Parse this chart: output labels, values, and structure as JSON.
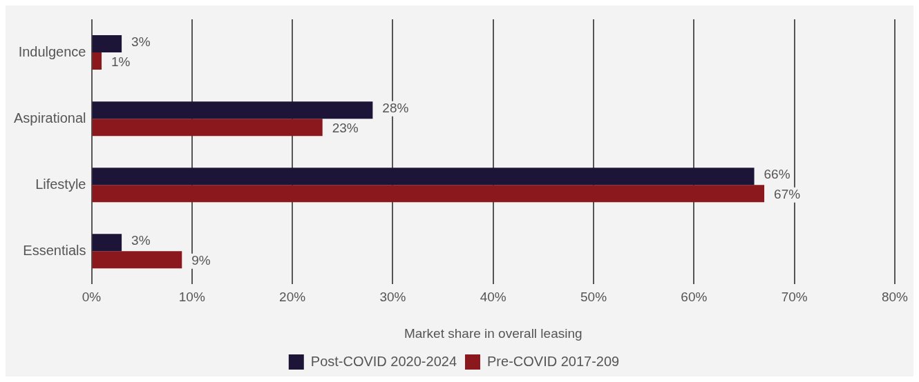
{
  "chart_data": {
    "type": "bar",
    "orientation": "horizontal",
    "xlabel": "Market share in overall leasing",
    "categories": [
      "Indulgence",
      "Aspirational",
      "Lifestyle",
      "Essentials"
    ],
    "series": [
      {
        "name": "Post-COVID 2020-2024",
        "color": "#1c1538",
        "values": [
          3,
          28,
          66,
          3
        ],
        "value_labels": [
          "3%",
          "28%",
          "66%",
          "3%"
        ]
      },
      {
        "name": "Pre-COVID 2017-209",
        "color": "#8b181c",
        "values": [
          1,
          23,
          67,
          9
        ],
        "value_labels": [
          "1%",
          "23%",
          "67%",
          "9%"
        ]
      }
    ],
    "xlim": [
      0,
      80
    ],
    "xticks": [
      {
        "value": 0,
        "label": "0%"
      },
      {
        "value": 10,
        "label": "10%"
      },
      {
        "value": 20,
        "label": "20%"
      },
      {
        "value": 30,
        "label": "30%"
      },
      {
        "value": 40,
        "label": "40%"
      },
      {
        "value": 50,
        "label": "50%"
      },
      {
        "value": 60,
        "label": "60%"
      },
      {
        "value": 70,
        "label": "70%"
      },
      {
        "value": 80,
        "label": "80%"
      }
    ],
    "grid": "x",
    "legend": "bottom"
  }
}
